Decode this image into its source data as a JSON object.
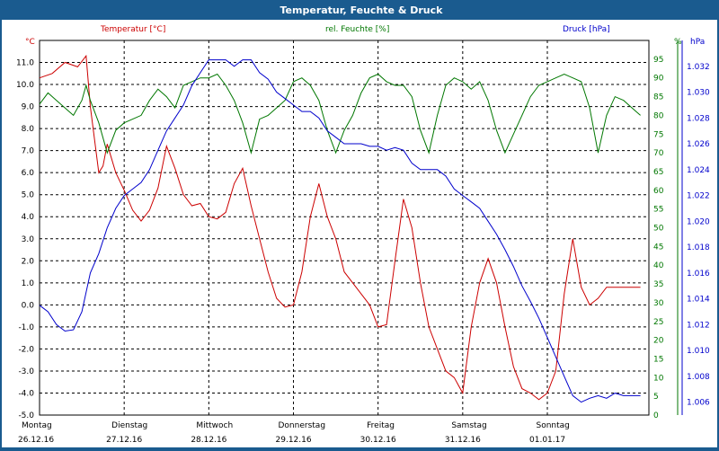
{
  "window_title": "Temperatur, Feuchte & Druck",
  "colors": {
    "temperature": "#cc0000",
    "humidity": "#007700",
    "pressure": "#0000cc",
    "grid": "#000000"
  },
  "chart_data": {
    "type": "line",
    "grid": true,
    "x_labels": [
      {
        "day": "Montag",
        "date": "26.12.16"
      },
      {
        "day": "Dienstag",
        "date": "27.12.16"
      },
      {
        "day": "Mittwoch",
        "date": "28.12.16"
      },
      {
        "day": "Donnerstag",
        "date": "29.12.16"
      },
      {
        "day": "Freitag",
        "date": "30.12.16"
      },
      {
        "day": "Samstag",
        "date": "31.12.16"
      },
      {
        "day": "Sonntag",
        "date": "01.01.17"
      }
    ],
    "axes": {
      "left": {
        "label": "°C",
        "min": -5.0,
        "max": 12.0,
        "ticks": [
          "11.0",
          "10.0",
          "9.0",
          "8.0",
          "7.0",
          "6.0",
          "5.0",
          "4.0",
          "3.0",
          "2.0",
          "1.0",
          "0.0",
          "-1.0",
          "-2.0",
          "-3.0",
          "-4.0",
          "-5.0"
        ]
      },
      "right_humidity": {
        "label": "%",
        "min": 0,
        "max": 100,
        "ticks": [
          "95",
          "90",
          "85",
          "80",
          "75",
          "70",
          "65",
          "60",
          "55",
          "50",
          "45",
          "40",
          "35",
          "30",
          "25",
          "20",
          "15",
          "10",
          "5",
          "0"
        ]
      },
      "right_pressure": {
        "label": "hPa",
        "min": 1.005,
        "max": 1.034,
        "ticks": [
          "1.032",
          "1.030",
          "1.028",
          "1.026",
          "1.024",
          "1.022",
          "1.020",
          "1.018",
          "1.016",
          "1.014",
          "1.012",
          "1.010",
          "1.008",
          "1.006"
        ]
      }
    },
    "series": [
      {
        "name": "Temperatur [°C]",
        "axis": "left",
        "x": [
          0,
          0.15,
          0.3,
          0.45,
          0.55,
          0.6,
          0.7,
          0.75,
          0.8,
          0.9,
          1.0,
          1.1,
          1.2,
          1.3,
          1.4,
          1.5,
          1.6,
          1.7,
          1.8,
          1.9,
          2.0,
          2.1,
          2.2,
          2.3,
          2.4,
          2.5,
          2.6,
          2.7,
          2.8,
          2.9,
          3.0,
          3.1,
          3.2,
          3.3,
          3.4,
          3.5,
          3.6,
          3.7,
          3.8,
          3.9,
          4.0,
          4.1,
          4.2,
          4.3,
          4.4,
          4.5,
          4.6,
          4.7,
          4.8,
          4.9,
          5.0,
          5.1,
          5.2,
          5.3,
          5.4,
          5.5,
          5.6,
          5.7,
          5.8,
          5.9,
          6.0,
          6.1,
          6.2,
          6.3,
          6.4,
          6.5,
          6.6,
          6.7,
          6.8,
          6.9,
          7.0,
          7.1
        ],
        "values": [
          10.3,
          10.5,
          11.0,
          10.8,
          11.3,
          9.0,
          6.0,
          6.3,
          7.3,
          6.0,
          5.2,
          4.3,
          3.8,
          4.3,
          5.3,
          7.2,
          6.2,
          5.0,
          4.5,
          4.6,
          4.0,
          3.9,
          4.2,
          5.5,
          6.2,
          4.5,
          3.0,
          1.5,
          0.3,
          -0.1,
          0.0,
          1.5,
          4.0,
          5.5,
          4.0,
          3.0,
          1.5,
          1.0,
          0.5,
          0.0,
          -1.0,
          -0.9,
          2.0,
          4.8,
          3.5,
          1.0,
          -1.0,
          -2.0,
          -3.0,
          -3.3,
          -4.0,
          -1.0,
          1.0,
          2.1,
          1.0,
          -1.0,
          -2.8,
          -3.8,
          -4.0,
          -4.3,
          -4.0,
          -3.0,
          0.5,
          3.0,
          0.8,
          0.0,
          0.3,
          0.8,
          0.8,
          0.8,
          0.8,
          0.8
        ]
      },
      {
        "name": "rel. Feuchte [%]",
        "axis": "right_humidity",
        "x": [
          0,
          0.1,
          0.2,
          0.3,
          0.4,
          0.5,
          0.55,
          0.6,
          0.7,
          0.8,
          0.9,
          1.0,
          1.1,
          1.2,
          1.3,
          1.4,
          1.5,
          1.6,
          1.7,
          1.8,
          1.9,
          2.0,
          2.1,
          2.2,
          2.3,
          2.4,
          2.5,
          2.6,
          2.7,
          2.8,
          2.9,
          3.0,
          3.1,
          3.2,
          3.3,
          3.4,
          3.5,
          3.6,
          3.7,
          3.8,
          3.9,
          4.0,
          4.1,
          4.2,
          4.3,
          4.4,
          4.5,
          4.6,
          4.7,
          4.8,
          4.9,
          5.0,
          5.1,
          5.2,
          5.3,
          5.4,
          5.5,
          5.6,
          5.7,
          5.8,
          5.9,
          6.0,
          6.1,
          6.2,
          6.3,
          6.4,
          6.5,
          6.6,
          6.7,
          6.8,
          6.9,
          7.0,
          7.1
        ],
        "values": [
          83,
          86,
          84,
          82,
          80,
          84,
          88,
          84,
          78,
          70,
          76,
          78,
          79,
          80,
          84,
          87,
          85,
          82,
          88,
          89,
          90,
          90,
          91,
          88,
          84,
          78,
          70,
          79,
          80,
          82,
          84,
          89,
          90,
          88,
          84,
          76,
          70,
          76,
          80,
          86,
          90,
          91,
          89,
          88,
          88,
          85,
          76,
          70,
          80,
          88,
          90,
          89,
          87,
          89,
          84,
          76,
          70,
          75,
          80,
          85,
          88,
          89,
          90,
          91,
          90,
          89,
          82,
          70,
          80,
          85,
          84,
          82,
          80
        ]
      },
      {
        "name": "Druck [hPa]",
        "axis": "right_pressure",
        "x": [
          0,
          0.1,
          0.2,
          0.3,
          0.4,
          0.5,
          0.6,
          0.7,
          0.8,
          0.9,
          1.0,
          1.1,
          1.2,
          1.3,
          1.4,
          1.5,
          1.6,
          1.7,
          1.8,
          1.9,
          2.0,
          2.1,
          2.2,
          2.3,
          2.4,
          2.5,
          2.6,
          2.7,
          2.8,
          2.9,
          3.0,
          3.1,
          3.2,
          3.3,
          3.4,
          3.5,
          3.6,
          3.7,
          3.8,
          3.9,
          4.0,
          4.1,
          4.2,
          4.3,
          4.4,
          4.5,
          4.6,
          4.7,
          4.8,
          4.9,
          5.0,
          5.1,
          5.2,
          5.3,
          5.4,
          5.5,
          5.6,
          5.7,
          5.8,
          5.9,
          6.0,
          6.1,
          6.2,
          6.3,
          6.4,
          6.5,
          6.6,
          6.7,
          6.8,
          6.9,
          7.0,
          7.1
        ],
        "values": [
          1.0135,
          1.013,
          1.012,
          1.0115,
          1.0116,
          1.013,
          1.016,
          1.0175,
          1.0195,
          1.021,
          1.022,
          1.0225,
          1.023,
          1.024,
          1.0255,
          1.027,
          1.028,
          1.029,
          1.0305,
          1.0315,
          1.0325,
          1.0325,
          1.0325,
          1.032,
          1.0325,
          1.0325,
          1.0315,
          1.031,
          1.03,
          1.0295,
          1.029,
          1.0285,
          1.0285,
          1.028,
          1.027,
          1.0265,
          1.026,
          1.026,
          1.026,
          1.0258,
          1.0258,
          1.0255,
          1.0257,
          1.0255,
          1.0245,
          1.024,
          1.024,
          1.024,
          1.0235,
          1.0225,
          1.022,
          1.0215,
          1.021,
          1.02,
          1.019,
          1.0178,
          1.0165,
          1.015,
          1.0138,
          1.0125,
          1.011,
          1.0095,
          1.008,
          1.0065,
          1.006,
          1.0063,
          1.0065,
          1.0063,
          1.0067,
          1.0065,
          1.0065,
          1.0065
        ]
      }
    ]
  }
}
